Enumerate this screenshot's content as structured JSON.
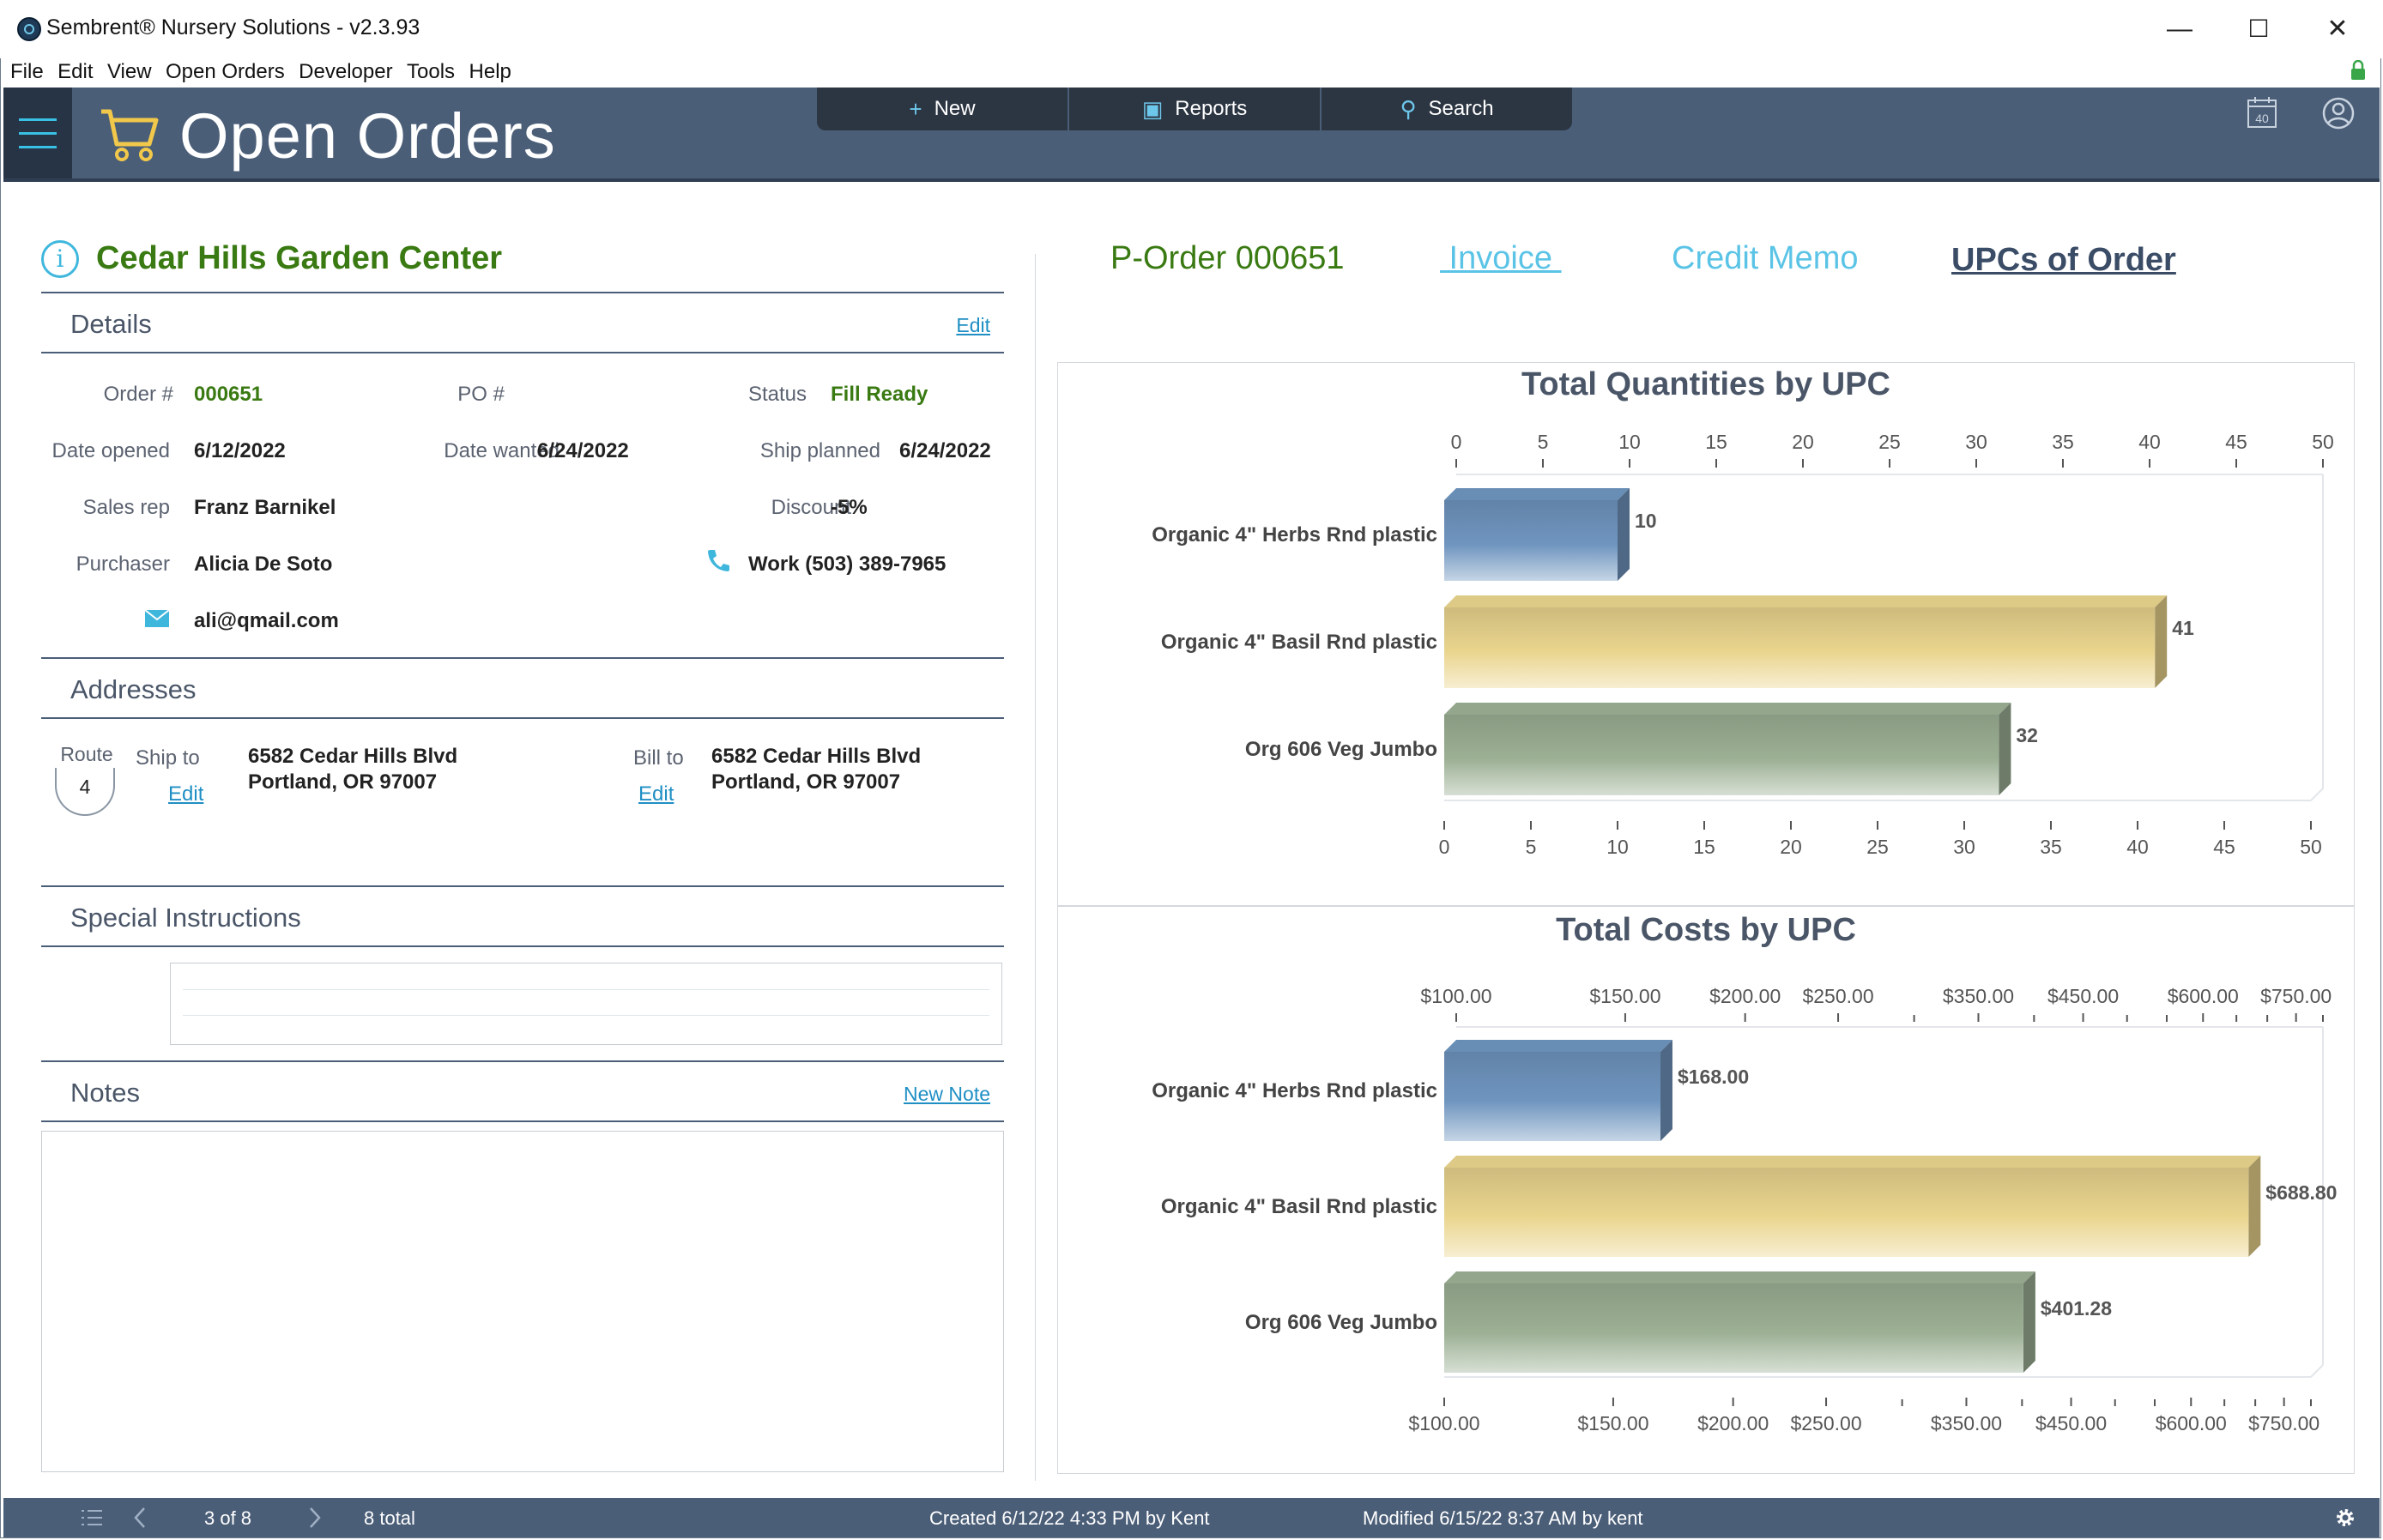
{
  "window": {
    "title": "Sembrent® Nursery Solutions - v2.3.93",
    "controls": {
      "minimize": "—",
      "maximize": "☐",
      "close": "✕"
    }
  },
  "menu": [
    "File",
    "Edit",
    "View",
    "Open Orders",
    "Developer",
    "Tools",
    "Help"
  ],
  "header": {
    "title": "Open Orders",
    "toolbar": [
      {
        "label": "New",
        "icon": "plus-icon",
        "glyph": "+"
      },
      {
        "label": "Reports",
        "icon": "reports-icon",
        "glyph": "▣"
      },
      {
        "label": "Search",
        "icon": "search-icon",
        "glyph": "⚲"
      }
    ],
    "calendar_day": "40"
  },
  "customer": {
    "name": "Cedar Hills Garden Center"
  },
  "details": {
    "section_label": "Details",
    "edit_label": "Edit",
    "order_no_label": "Order #",
    "order_no": "000651",
    "po_label": "PO #",
    "status_label": "Status",
    "status": "Fill Ready",
    "date_opened_label": "Date opened",
    "date_opened": "6/12/2022",
    "date_wanted_label": "Date wanted",
    "date_wanted": "6/24/2022",
    "ship_planned_label": "Ship planned",
    "ship_planned": "6/24/2022",
    "sales_rep_label": "Sales rep",
    "sales_rep": "Franz Barnikel",
    "discount_label": "Discount",
    "discount": "-5%",
    "purchaser_label": "Purchaser",
    "purchaser": "Alicia De Soto",
    "phone": "Work (503) 389-7965",
    "email": "ali@qmail.com"
  },
  "addresses": {
    "section_label": "Addresses",
    "route_label": "Route",
    "route": "4",
    "ship_to_label": "Ship to",
    "ship_to_line1": "6582 Cedar Hills Blvd",
    "ship_to_line2": "Portland, OR 97007",
    "bill_to_label": "Bill to",
    "bill_to_line1": "6582 Cedar Hills Blvd",
    "bill_to_line2": "Portland, OR 97007",
    "edit_label": "Edit"
  },
  "special_instructions": {
    "section_label": "Special Instructions"
  },
  "notes": {
    "section_label": "Notes",
    "new_note_label": "New Note"
  },
  "tabs": [
    {
      "label": "P-Order 000651",
      "color": "#3a7a12"
    },
    {
      "label": " Invoice ",
      "color": "#5bc4e6"
    },
    {
      "label": "Credit Memo",
      "color": "#5bc4e6"
    },
    {
      "label": "UPCs of Order",
      "color": "#3a4c66"
    }
  ],
  "chart_data": [
    {
      "type": "bar",
      "orientation": "horizontal",
      "title": "Total Quantities by UPC",
      "categories": [
        "Organic 4\" Herbs Rnd plastic",
        "Organic 4\" Basil Rnd plastic",
        "Org 606 Veg Jumbo"
      ],
      "values": [
        10,
        41,
        32
      ],
      "data_labels": [
        "10",
        "41",
        "32"
      ],
      "colors": [
        "#6f95bf",
        "#ead58e",
        "#9cb094"
      ],
      "xlim": [
        0,
        50
      ],
      "ticks": [
        0,
        5,
        10,
        15,
        20,
        25,
        30,
        35,
        40,
        45,
        50
      ],
      "tick_labels": [
        "0",
        "5",
        "10",
        "15",
        "20",
        "25",
        "30",
        "35",
        "40",
        "45",
        "50"
      ],
      "axis_scale": "linear",
      "axis_position": "top and bottom",
      "grid": false
    },
    {
      "type": "bar",
      "orientation": "horizontal",
      "title": "Total Costs by UPC",
      "categories": [
        "Organic 4\" Herbs Rnd plastic",
        "Organic 4\" Basil Rnd plastic",
        "Org 606 Veg Jumbo"
      ],
      "values": [
        168.0,
        688.8,
        401.28
      ],
      "data_labels": [
        "$168.00",
        "$688.80",
        "$401.28"
      ],
      "colors": [
        "#6f95bf",
        "#ead58e",
        "#9cb094"
      ],
      "xlim": [
        100,
        800
      ],
      "ticks": [
        100,
        150,
        200,
        250,
        350,
        450,
        600,
        750
      ],
      "tick_labels": [
        "$100.00",
        "$150.00",
        "$200.00",
        "$250.00",
        "$350.00",
        "$450.00",
        "$600.00",
        "$750.00"
      ],
      "minor_ticks": [
        300,
        400,
        500,
        550,
        650,
        700,
        800
      ],
      "axis_scale": "log",
      "axis_position": "top and bottom",
      "grid": false
    }
  ],
  "status_bar": {
    "position": "3 of 8",
    "total": "8 total",
    "created": "Created 6/12/22 4:33 PM by Kent",
    "modified": "Modified 6/15/22 8:37 AM by kent"
  }
}
